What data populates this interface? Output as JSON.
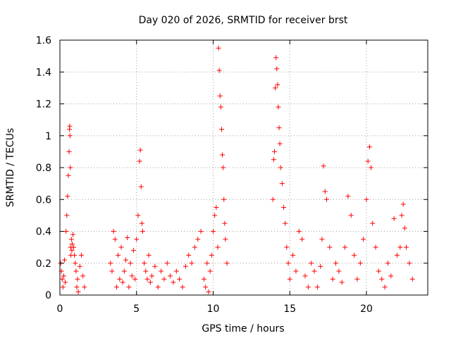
{
  "chart_data": {
    "type": "scatter",
    "title": "Day 020 of 2026, SRMTID for receiver brst",
    "xlabel": "GPS time / hours",
    "ylabel": "SRMTID / TECUs",
    "xlim": [
      0,
      24
    ],
    "ylim": [
      0,
      1.6
    ],
    "x_ticks": [
      0,
      5,
      10,
      15,
      20
    ],
    "x_tick_labels": [
      "0",
      "5",
      "10",
      "15",
      "20"
    ],
    "y_ticks": [
      0,
      0.2,
      0.4,
      0.6,
      0.8,
      1.0,
      1.2,
      1.4,
      1.6
    ],
    "y_tick_labels": [
      "0",
      "0.2",
      "0.4",
      "0.6",
      "0.8",
      "1",
      "1.2",
      "1.4",
      "1.6"
    ],
    "grid": true,
    "marker": "+",
    "marker_color": "#ff0000",
    "series": [
      {
        "name": "SRMTID",
        "x": [
          0.05,
          0.1,
          0.15,
          0.2,
          0.25,
          0.3,
          0.35,
          0.4,
          0.45,
          0.5,
          0.55,
          0.6,
          0.62,
          0.64,
          0.66,
          0.68,
          0.7,
          0.72,
          0.75,
          0.78,
          0.8,
          0.85,
          0.9,
          0.95,
          1.0,
          1.05,
          1.1,
          1.15,
          1.2,
          1.3,
          1.4,
          1.5,
          1.6,
          3.3,
          3.4,
          3.5,
          3.6,
          3.7,
          3.8,
          3.9,
          4.0,
          4.1,
          4.2,
          4.3,
          4.4,
          4.5,
          4.6,
          4.7,
          4.8,
          4.9,
          5.0,
          5.1,
          5.2,
          5.25,
          5.3,
          5.35,
          5.4,
          5.5,
          5.6,
          5.7,
          5.8,
          5.9,
          6.0,
          6.2,
          6.4,
          6.6,
          6.8,
          7.0,
          7.2,
          7.4,
          7.6,
          7.8,
          8.0,
          8.2,
          8.4,
          8.6,
          8.8,
          9.0,
          9.2,
          9.4,
          9.5,
          9.6,
          9.7,
          9.8,
          9.9,
          10.0,
          10.1,
          10.2,
          10.3,
          10.35,
          10.4,
          10.45,
          10.5,
          10.55,
          10.6,
          10.65,
          10.7,
          10.75,
          10.8,
          10.9,
          13.9,
          13.95,
          14.0,
          14.05,
          14.1,
          14.15,
          14.2,
          14.25,
          14.3,
          14.35,
          14.4,
          14.5,
          14.6,
          14.7,
          14.8,
          14.9,
          15.0,
          15.2,
          15.4,
          15.6,
          15.8,
          16.0,
          16.2,
          16.4,
          16.6,
          16.8,
          17.0,
          17.1,
          17.2,
          17.3,
          17.4,
          17.6,
          17.8,
          18.0,
          18.2,
          18.4,
          18.6,
          18.8,
          19.0,
          19.2,
          19.4,
          19.6,
          19.8,
          20.0,
          20.1,
          20.2,
          20.3,
          20.4,
          20.6,
          20.8,
          21.0,
          21.2,
          21.4,
          21.6,
          21.8,
          22.0,
          22.2,
          22.3,
          22.4,
          22.5,
          22.6,
          22.8,
          23.0
        ],
        "y": [
          0.2,
          0.15,
          0.1,
          0.05,
          0.12,
          0.22,
          0.08,
          0.4,
          0.5,
          0.62,
          0.75,
          0.9,
          1.04,
          1.06,
          1.0,
          0.8,
          0.3,
          0.25,
          0.35,
          0.28,
          0.32,
          0.38,
          0.3,
          0.25,
          0.2,
          0.15,
          0.05,
          0.1,
          0.02,
          0.18,
          0.25,
          0.12,
          0.05,
          0.2,
          0.15,
          0.4,
          0.35,
          0.05,
          0.25,
          0.1,
          0.3,
          0.08,
          0.15,
          0.22,
          0.36,
          0.05,
          0.2,
          0.12,
          0.28,
          0.1,
          0.35,
          0.5,
          0.84,
          0.91,
          0.68,
          0.45,
          0.4,
          0.2,
          0.15,
          0.1,
          0.25,
          0.08,
          0.12,
          0.18,
          0.05,
          0.15,
          0.1,
          0.2,
          0.12,
          0.08,
          0.15,
          0.1,
          0.05,
          0.18,
          0.25,
          0.2,
          0.3,
          0.35,
          0.4,
          0.1,
          0.05,
          0.2,
          0.02,
          0.15,
          0.25,
          0.4,
          0.5,
          0.55,
          0.3,
          1.55,
          1.41,
          1.25,
          1.18,
          1.04,
          0.88,
          0.8,
          0.6,
          0.45,
          0.35,
          0.2,
          0.6,
          0.85,
          0.9,
          1.3,
          1.49,
          1.42,
          1.32,
          1.18,
          1.05,
          0.95,
          0.8,
          0.7,
          0.55,
          0.45,
          0.3,
          0.2,
          0.1,
          0.25,
          0.15,
          0.4,
          0.35,
          0.12,
          0.05,
          0.2,
          0.15,
          0.05,
          0.18,
          0.35,
          0.81,
          0.65,
          0.6,
          0.3,
          0.1,
          0.2,
          0.15,
          0.08,
          0.3,
          0.62,
          0.5,
          0.25,
          0.1,
          0.2,
          0.35,
          0.6,
          0.84,
          0.93,
          0.8,
          0.45,
          0.3,
          0.15,
          0.1,
          0.05,
          0.2,
          0.12,
          0.48,
          0.25,
          0.3,
          0.5,
          0.57,
          0.42,
          0.3,
          0.2,
          0.1
        ]
      }
    ]
  }
}
